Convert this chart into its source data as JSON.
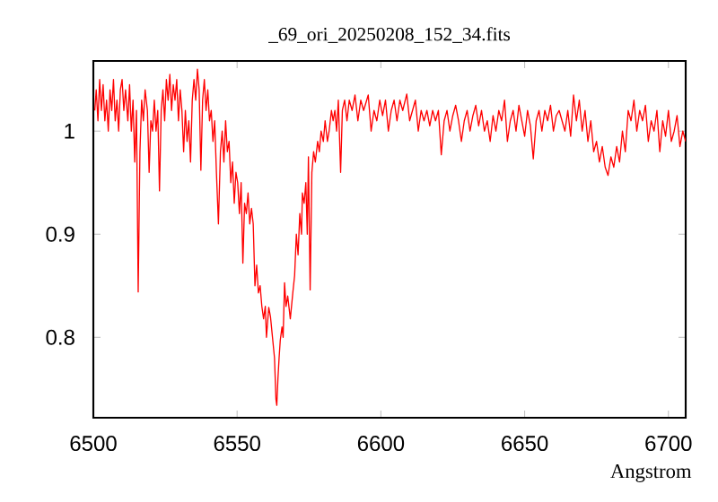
{
  "chart_data": {
    "type": "line",
    "title": "_69_ori_20250208_152_34.fits",
    "xlabel": "Angstrom",
    "color": "#ff0000",
    "xlim": [
      6500,
      6706
    ],
    "ylim": [
      0.722,
      1.068
    ],
    "xticks": [
      6500,
      6550,
      6600,
      6650,
      6700
    ],
    "yticks": [
      0.8,
      0.9,
      1
    ],
    "x": [
      6500.5,
      6501,
      6501.6,
      6502.2,
      6502.8,
      6503.4,
      6504,
      6504.6,
      6505.2,
      6505.8,
      6506.4,
      6507,
      6507.6,
      6508.2,
      6508.8,
      6509.4,
      6510,
      6510.6,
      6511.2,
      6512,
      6512.6,
      6513.2,
      6513.8,
      6514.4,
      6515,
      6515.6,
      6516.2,
      6516.8,
      6517.4,
      6518,
      6518.8,
      6519.4,
      6520,
      6520.6,
      6521.2,
      6521.8,
      6522.4,
      6523,
      6523.6,
      6524.2,
      6524.8,
      6525.4,
      6526,
      6526.6,
      6527.2,
      6527.8,
      6528.4,
      6529,
      6529.6,
      6530.2,
      6530.8,
      6531.4,
      6532,
      6532.6,
      6533.2,
      6533.8,
      6534.4,
      6535,
      6535.6,
      6536.2,
      6536.8,
      6537.4,
      6538,
      6538.6,
      6539.2,
      6539.8,
      6540.4,
      6541,
      6541.6,
      6542.2,
      6542.8,
      6543.5,
      6544.2,
      6544.8,
      6545.4,
      6546,
      6546.6,
      6547.2,
      6547.8,
      6548.4,
      6549,
      6549.6,
      6550.2,
      6550.8,
      6551.4,
      6552,
      6552.6,
      6553.2,
      6553.8,
      6554.4,
      6555,
      6555.6,
      6556.2,
      6556.8,
      6557.4,
      6558,
      6558.6,
      6559.2,
      6559.8,
      6560.2,
      6561,
      6561.6,
      6562.3,
      6563,
      6563.5,
      6563.8,
      6564.2,
      6564.6,
      6565,
      6565.6,
      6566,
      6566.5,
      6567,
      6567.6,
      6568.5,
      6569.4,
      6570,
      6570.6,
      6571.2,
      6571.8,
      6572.4,
      6572.7,
      6573.3,
      6573.9,
      6574.4,
      6574.8,
      6575.4,
      6576,
      6576.6,
      6577.2,
      6578,
      6578.6,
      6579.2,
      6580,
      6580.6,
      6581.4,
      6582,
      6582.8,
      6583.4,
      6584,
      6584.6,
      6585.2,
      6586,
      6586.6,
      6587.4,
      6588.2,
      6589,
      6590,
      6591,
      6592,
      6593,
      6594,
      6595.6,
      6596.6,
      6597.6,
      6598.6,
      6599.6,
      6600.6,
      6601.6,
      6602.6,
      6603.6,
      6604.6,
      6605.6,
      6606.6,
      6607.6,
      6609,
      6610,
      6611,
      6612,
      6613,
      6614,
      6615,
      6616,
      6617,
      6618,
      6619,
      6620,
      6621,
      6622,
      6623,
      6624,
      6625,
      6626,
      6627,
      6628,
      6629,
      6630,
      6631,
      6632,
      6633,
      6634,
      6635,
      6636,
      6637,
      6638,
      6639,
      6640,
      6641,
      6642,
      6643,
      6644,
      6645,
      6646,
      6647,
      6648,
      6649,
      6650,
      6651,
      6652,
      6653,
      6654,
      6655,
      6656,
      6657,
      6658,
      6659,
      6660,
      6661,
      6662,
      6663,
      6664,
      6665,
      6666,
      6667,
      6668,
      6669,
      6670,
      6671,
      6672,
      6673,
      6674,
      6675,
      6676,
      6677,
      6678,
      6679,
      6680,
      6681,
      6682,
      6683,
      6684,
      6685,
      6686,
      6687,
      6688,
      6689,
      6690,
      6691,
      6692,
      6693,
      6694,
      6695,
      6696,
      6697,
      6698,
      6699,
      6700,
      6701,
      6702,
      6703,
      6704,
      6705,
      6706
    ],
    "values": [
      1.02,
      1.04,
      1.01,
      1.05,
      1.02,
      1.045,
      1.01,
      1.03,
      1.0,
      1.04,
      1.02,
      1.05,
      1.01,
      1.03,
      1.0,
      1.04,
      1.05,
      1.02,
      1.04,
      1.01,
      1.045,
      1.0,
      1.03,
      0.97,
      1.02,
      0.844,
      0.98,
      1.03,
      1.01,
      1.04,
      1.02,
      0.96,
      1.01,
      1.0,
      1.03,
      1.0,
      1.02,
      0.942,
      1.02,
      1.04,
      1.01,
      1.05,
      1.03,
      1.055,
      1.02,
      1.045,
      1.03,
      1.05,
      1.01,
      1.04,
      1.02,
      0.98,
      1.02,
      0.99,
      1.01,
      0.97,
      1.03,
      1.05,
      1.03,
      1.06,
      1.04,
      0.962,
      1.03,
      1.05,
      1.02,
      1.04,
      1.01,
      1.02,
      0.99,
      1.01,
      0.96,
      0.91,
      0.98,
      1.0,
      0.97,
      1.01,
      0.98,
      0.99,
      0.95,
      0.97,
      0.93,
      0.96,
      0.95,
      0.92,
      0.95,
      0.872,
      0.93,
      0.92,
      0.94,
      0.91,
      0.925,
      0.91,
      0.85,
      0.87,
      0.843,
      0.85,
      0.83,
      0.818,
      0.83,
      0.8,
      0.829,
      0.82,
      0.8,
      0.78,
      0.74,
      0.734,
      0.76,
      0.78,
      0.797,
      0.81,
      0.8,
      0.853,
      0.83,
      0.84,
      0.818,
      0.844,
      0.86,
      0.9,
      0.88,
      0.92,
      0.9,
      0.94,
      0.93,
      0.95,
      0.9,
      0.975,
      0.846,
      0.96,
      0.98,
      0.97,
      0.99,
      0.98,
      1.0,
      0.99,
      1.01,
      0.99,
      1.0,
      1.02,
      1.01,
      1.02,
      1.0,
      1.03,
      0.96,
      1.02,
      1.03,
      1.01,
      1.03,
      1.02,
      1.035,
      1.01,
      1.03,
      1.02,
      1.035,
      1.0,
      1.02,
      1.01,
      1.03,
      1.015,
      1.03,
      1.0,
      1.02,
      1.03,
      1.01,
      1.03,
      1.02,
      1.036,
      1.01,
      1.02,
      1.03,
      1.0,
      1.02,
      1.01,
      1.02,
      1.005,
      1.02,
      1.01,
      1.02,
      0.977,
      1.01,
      1.02,
      1.0,
      1.015,
      1.025,
      1.01,
      0.99,
      1.01,
      1.02,
      1.0,
      1.015,
      1.025,
      1.005,
      1.02,
      1.0,
      1.01,
      0.99,
      1.015,
      1.0,
      1.02,
      1.01,
      1.03,
      0.99,
      1.01,
      1.02,
      1.0,
      1.025,
      1.01,
      0.995,
      1.02,
      1.005,
      0.973,
      1.01,
      1.02,
      1.0,
      1.02,
      1.01,
      1.025,
      1.0,
      1.015,
      1.02,
      1.01,
      1.0,
      1.02,
      0.995,
      1.035,
      1.01,
      1.03,
      1.0,
      1.02,
      0.99,
      1.01,
      0.98,
      0.99,
      0.97,
      0.985,
      0.965,
      0.957,
      0.975,
      0.965,
      0.985,
      0.97,
      1.0,
      0.98,
      1.02,
      1.01,
      1.03,
      1.0,
      1.02,
      1.01,
      1.025,
      0.99,
      1.01,
      1.0,
      1.02,
      0.98,
      1.01,
      0.995,
      1.02,
      0.99,
      1.0,
      1.015,
      0.985,
      1.0,
      0.99
    ]
  }
}
